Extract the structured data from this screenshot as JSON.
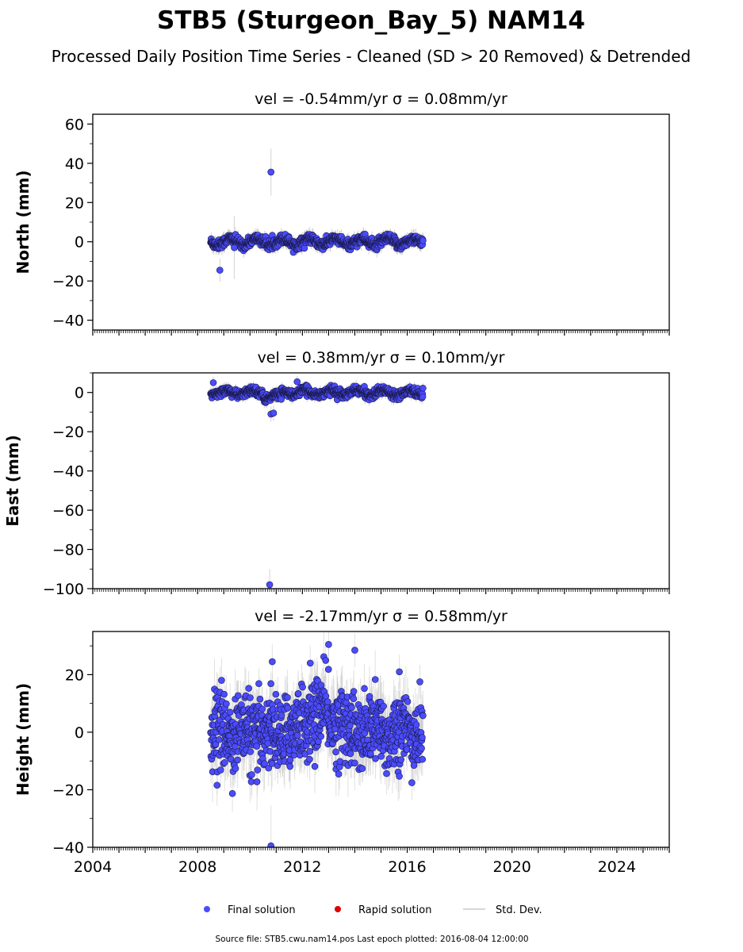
{
  "header": {
    "title": "STB5 (Sturgeon_Bay_5) NAM14",
    "subtitle": "Processed Daily Position Time Series - Cleaned (SD > 20 Removed) & Detrended"
  },
  "legend": {
    "final": "Final solution",
    "rapid": "Rapid solution",
    "std": "Std. Dev."
  },
  "footer": {
    "source": "Source file: STB5.cwu.nam14.pos  Last epoch plotted: 2016-08-04 12:00:00"
  },
  "colors": {
    "final": "#4b4bff",
    "rapid": "#e00000",
    "std": "#c8c8c8",
    "marker_edge": "#1a1a4a"
  },
  "chart_data": [
    {
      "type": "scatter",
      "title": "vel = -0.54mm/yr   σ = 0.08mm/yr",
      "ylabel": "North (mm)",
      "xlabel": "",
      "xlim": [
        2004,
        2026
      ],
      "ylim": [
        -45,
        65
      ],
      "yticks": [
        -40,
        -20,
        0,
        20,
        40,
        60
      ],
      "xticks": [
        2004,
        2008,
        2012,
        2016,
        2020,
        2024
      ],
      "time_range": [
        2008.5,
        2016.6
      ],
      "outliers": [
        {
          "x": 2010.8,
          "y": 35.5,
          "err": 12
        },
        {
          "x": 2008.85,
          "y": -14.5,
          "err": 6
        },
        {
          "x": 2009.4,
          "y": -3,
          "err": 16
        }
      ]
    },
    {
      "type": "scatter",
      "title": "vel = 0.38mm/yr   σ = 0.10mm/yr",
      "ylabel": "East (mm)",
      "xlabel": "",
      "xlim": [
        2004,
        2026
      ],
      "ylim": [
        -100,
        10
      ],
      "yticks": [
        -100,
        -80,
        -60,
        -40,
        -20,
        0
      ],
      "xticks": [
        2004,
        2008,
        2012,
        2016,
        2020,
        2024
      ],
      "time_range": [
        2008.5,
        2016.6
      ],
      "outliers": [
        {
          "x": 2010.75,
          "y": -98,
          "err": 8
        },
        {
          "x": 2010.8,
          "y": -11,
          "err": 4
        },
        {
          "x": 2010.9,
          "y": -10.5,
          "err": 4
        },
        {
          "x": 2008.6,
          "y": 5,
          "err": 3
        },
        {
          "x": 2011.8,
          "y": 5.5,
          "err": 3
        }
      ]
    },
    {
      "type": "scatter",
      "title": "vel = -2.17mm/yr   σ = 0.58mm/yr",
      "ylabel": "Height (mm)",
      "xlabel": "",
      "xlim": [
        2004,
        2026
      ],
      "ylim": [
        -40,
        35
      ],
      "yticks": [
        -40,
        -20,
        0,
        20
      ],
      "xticks": [
        2004,
        2008,
        2012,
        2016,
        2020,
        2024
      ],
      "xticklabels": [
        "2004",
        "2008",
        "2012",
        "2016",
        "2020",
        "2024"
      ],
      "time_range": [
        2008.5,
        2016.6
      ],
      "outliers": [
        {
          "x": 2010.8,
          "y": -39.5,
          "err": 14
        },
        {
          "x": 2013.0,
          "y": 30.5,
          "err": 6
        },
        {
          "x": 2014.0,
          "y": 28.5,
          "err": 6
        },
        {
          "x": 2010.85,
          "y": 24.5,
          "err": 6
        },
        {
          "x": 2012.3,
          "y": 24,
          "err": 6
        },
        {
          "x": 2015.7,
          "y": 21,
          "err": 6
        }
      ]
    }
  ]
}
